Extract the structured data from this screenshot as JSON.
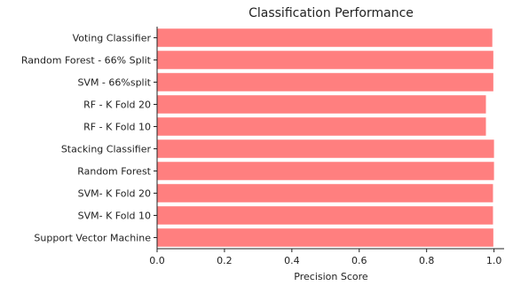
{
  "chart_data": {
    "type": "bar",
    "orientation": "horizontal",
    "title": "Classification Performance",
    "xlabel": "Precision Score",
    "ylabel": "",
    "xlim": [
      0.0,
      1.03
    ],
    "xticks": [
      "0.0",
      "0.2",
      "0.4",
      "0.6",
      "0.8",
      "1.0"
    ],
    "grid": false,
    "legend": "none",
    "bar_color": "#ff7f7f",
    "categories": [
      "Voting Classifier",
      "Random Forest - 66% Split",
      "SVM - 66%split",
      "RF - K Fold 20",
      "RF - K Fold 10",
      "Stacking Classifier",
      "Random Forest",
      "SVM- K Fold 20",
      "SVM- K Fold 10",
      "Support Vector Machine"
    ],
    "values": [
      0.995,
      0.998,
      0.998,
      0.976,
      0.976,
      1.0,
      1.0,
      0.997,
      0.997,
      0.998
    ]
  }
}
